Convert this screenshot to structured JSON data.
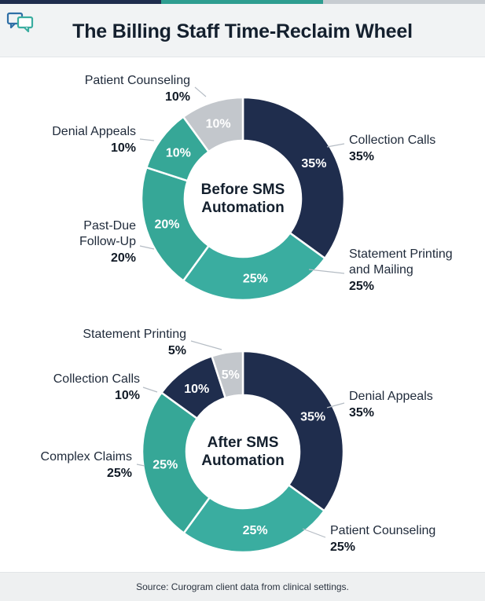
{
  "title": "The Billing Staff Time-Reclaim Wheel",
  "source": "Source: Curogram client data from clinical settings.",
  "colors": {
    "navy": "#1f2d4d",
    "teal": "#3aada0",
    "teal_mid": "#36a797",
    "gray": "#c3c7cc",
    "topbar": [
      "#1f2d4d",
      "#2e9d90",
      "#c7ccd1"
    ]
  },
  "chart_data": [
    {
      "type": "pie",
      "variant": "donut",
      "center_label": [
        "Before SMS",
        "Automation"
      ],
      "slices": [
        {
          "label": "Collection Calls",
          "value": 35,
          "display": "35%",
          "color": "#1f2d4d"
        },
        {
          "label": "Statement Printing and Mailing",
          "value": 25,
          "display": "25%",
          "color": "#3aada0"
        },
        {
          "label": "Past-Due Follow-Up",
          "value": 20,
          "display": "20%",
          "color": "#36a797"
        },
        {
          "label": "Denial Appeals",
          "value": 10,
          "display": "10%",
          "color": "#36a797"
        },
        {
          "label": "Patient Counseling",
          "value": 10,
          "display": "10%",
          "color": "#c3c7cc"
        }
      ]
    },
    {
      "type": "pie",
      "variant": "donut",
      "center_label": [
        "After SMS",
        "Automation"
      ],
      "slices": [
        {
          "label": "Denial Appeals",
          "value": 35,
          "display": "35%",
          "color": "#1f2d4d"
        },
        {
          "label": "Patient Counseling",
          "value": 25,
          "display": "25%",
          "color": "#3aada0"
        },
        {
          "label": "Complex Claims",
          "value": 25,
          "display": "25%",
          "color": "#36a797"
        },
        {
          "label": "Collection Calls",
          "value": 10,
          "display": "10%",
          "color": "#1f2d4d"
        },
        {
          "label": "Statement Printing",
          "value": 5,
          "display": "5%",
          "color": "#c3c7cc"
        }
      ]
    }
  ]
}
